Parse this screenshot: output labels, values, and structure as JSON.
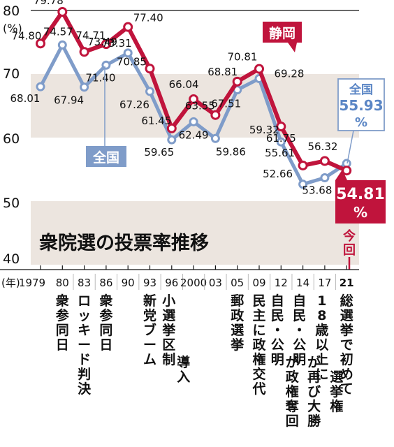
{
  "chart_data": {
    "type": "line",
    "title": "衆院選の投票率推移",
    "yunit": "(%)",
    "xunit": "(年)",
    "ylim": [
      40,
      80
    ],
    "yticks": [
      40,
      50,
      60,
      70,
      80
    ],
    "categories": [
      "1979",
      "80",
      "83",
      "86",
      "90",
      "93",
      "96",
      "2000",
      "03",
      "05",
      "09",
      "12",
      "14",
      "17",
      "21"
    ],
    "events": [
      "",
      "衆参同日",
      "ロッキード判決",
      "衆参同日",
      "",
      "新党ブーム",
      "小選挙区制導入",
      "",
      "",
      "郵政選挙",
      "民主に政権交代",
      "自民・公明が政権奪回",
      "自民・公明が再び大勝",
      "18歳以上に選挙権",
      "総選挙で初めて"
    ],
    "series": [
      {
        "name": "静岡",
        "color": "#c0143c",
        "values": [
          74.8,
          79.78,
          73.49,
          74.71,
          77.4,
          70.85,
          61.45,
          66.04,
          63.55,
          68.81,
          70.81,
          61.75,
          55.61,
          56.32,
          54.81
        ],
        "labels": [
          "74.80",
          "79.78",
          "73.49",
          "74.71",
          "77.40",
          "70.85",
          "61.45",
          "66.04",
          "63.55",
          "68.81",
          "70.81",
          "61.75",
          "55.61",
          "56.32",
          "54.81"
        ]
      },
      {
        "name": "全国",
        "color": "#7f9cc9",
        "values": [
          68.01,
          74.57,
          67.94,
          71.4,
          73.31,
          67.26,
          59.65,
          62.49,
          59.86,
          67.51,
          69.28,
          59.32,
          52.66,
          53.68,
          55.93
        ],
        "labels": [
          "68.01",
          "74.57",
          "67.94",
          "71.40",
          "73.31",
          "67.26",
          "59.65",
          "62.49",
          "59.86",
          "67.51",
          "69.28",
          "59.32",
          "52.66",
          "53.68",
          "55.93"
        ]
      }
    ],
    "shaded_bands": [
      [
        60,
        70
      ],
      [
        40,
        50
      ]
    ],
    "callouts": {
      "shizuoka_label": "静岡",
      "zenkoku_label": "全国",
      "current_zenkoku_name": "全国",
      "current_zenkoku_value": "55.93",
      "current_zenkoku_unit": "%",
      "current_shizuoka_value": "54.81",
      "current_shizuoka_unit": "%",
      "current_mark": "今回",
      "highlight_year": "21"
    }
  }
}
